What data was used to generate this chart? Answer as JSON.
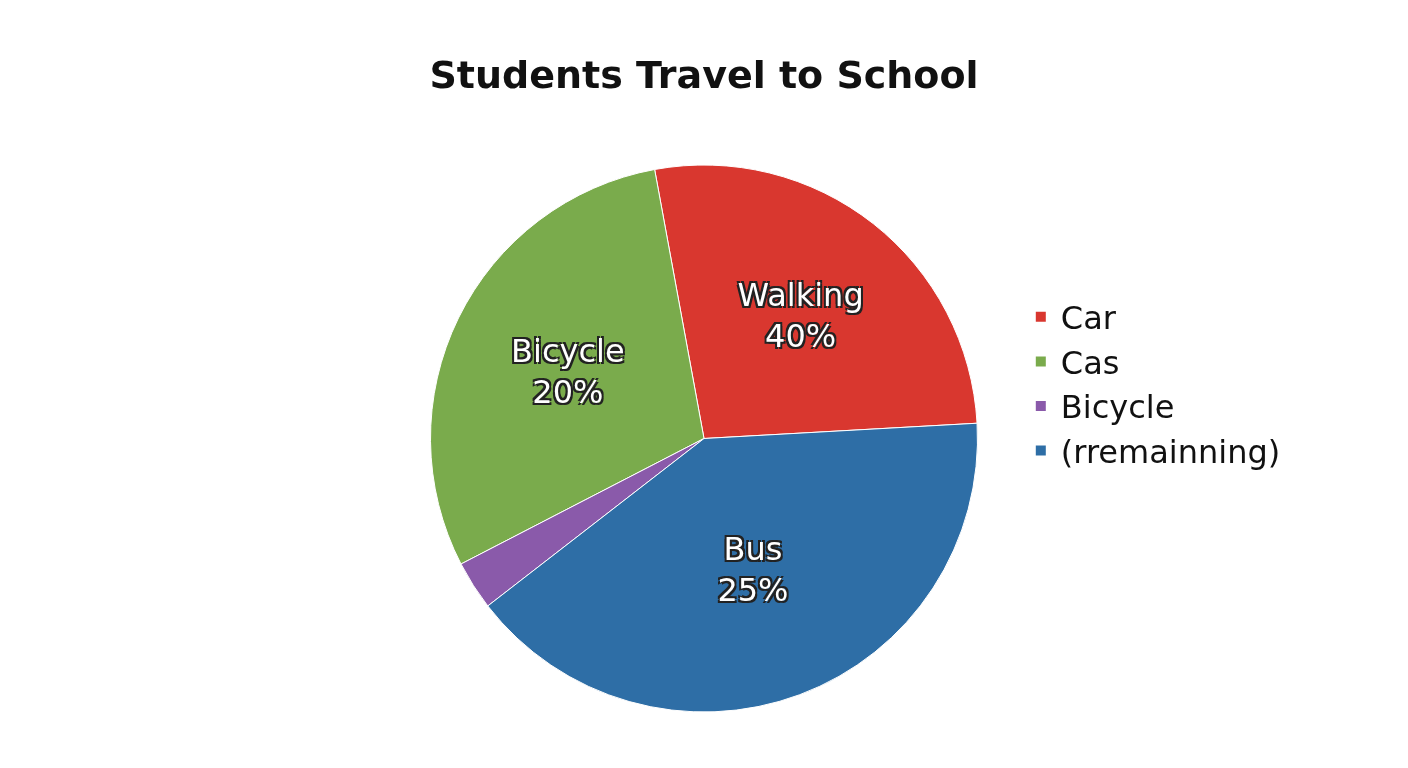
{
  "chart_data": {
    "type": "pie",
    "title": "Students Travel to School",
    "categories": [
      "Car",
      "Cas",
      "Bicycle",
      "(rremainning)"
    ],
    "values": [
      27.0,
      29.7,
      2.9,
      40.4
    ],
    "colors": [
      "#d9372f",
      "#7aab4c",
      "#8a5aaa",
      "#2e6ea6"
    ],
    "value_labels": [
      "Walking\n40%",
      "Bicycle\n20%",
      null,
      "Bus\n25%"
    ],
    "legend": "right"
  }
}
